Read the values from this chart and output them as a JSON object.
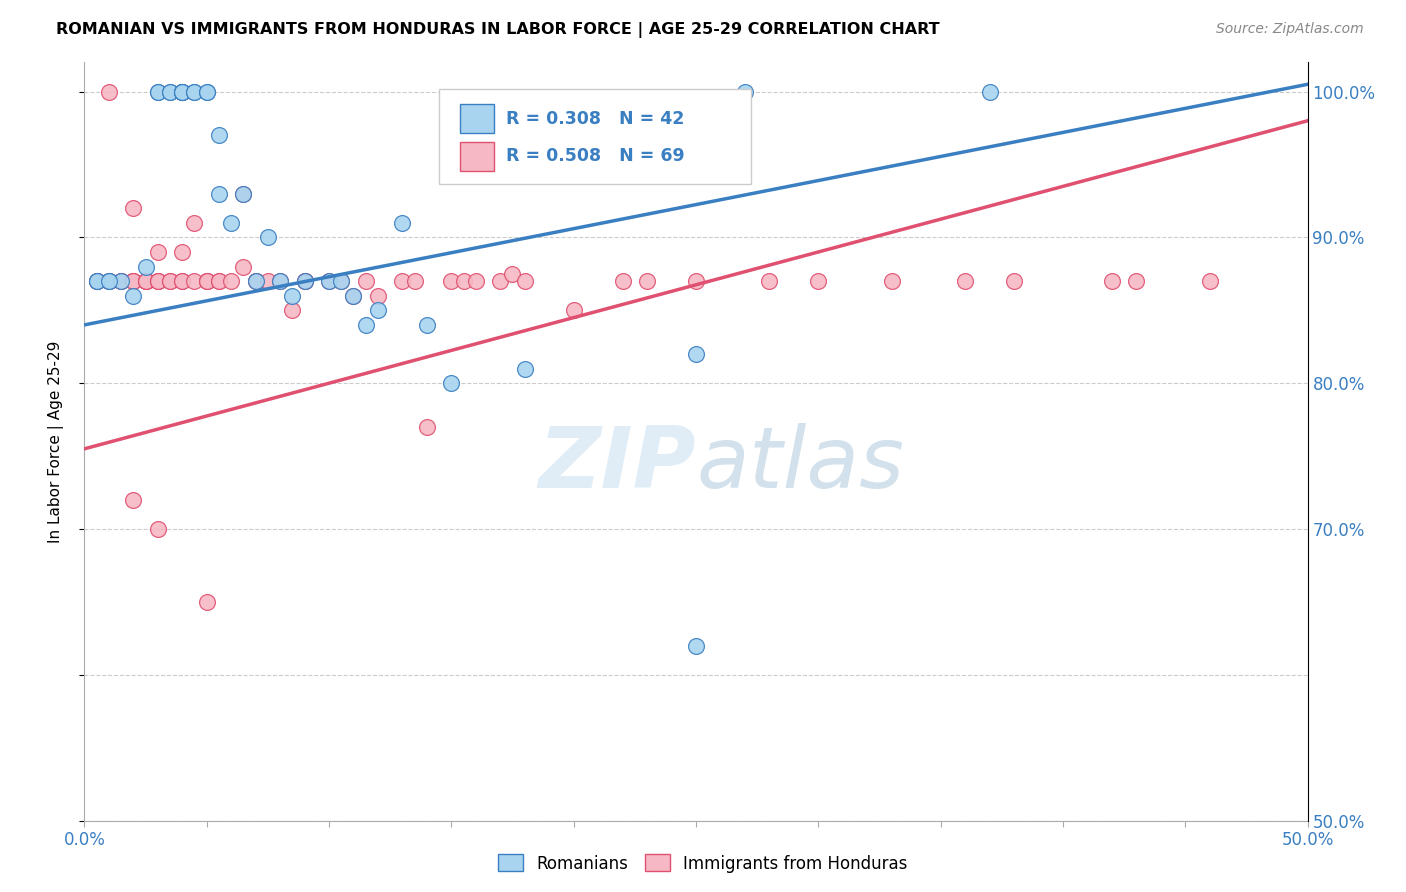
{
  "title": "ROMANIAN VS IMMIGRANTS FROM HONDURAS IN LABOR FORCE | AGE 25-29 CORRELATION CHART",
  "source": "Source: ZipAtlas.com",
  "ylabel_label": "In Labor Force | Age 25-29",
  "x_min": 0.0,
  "x_max": 0.5,
  "y_min": 0.5,
  "y_max": 1.02,
  "x_ticks": [
    0.0,
    0.05,
    0.1,
    0.15,
    0.2,
    0.25,
    0.3,
    0.35,
    0.4,
    0.45,
    0.5
  ],
  "x_tick_labels": [
    "0.0%",
    "",
    "",
    "",
    "",
    "",
    "",
    "",
    "",
    "",
    "50.0%"
  ],
  "y_ticks": [
    0.5,
    0.6,
    0.7,
    0.8,
    0.9,
    1.0
  ],
  "y_tick_labels_right": [
    "50.0%",
    "",
    "70.0%",
    "80.0%",
    "90.0%",
    "100.0%"
  ],
  "blue_color": "#a8d4f0",
  "pink_color": "#f5b8c4",
  "blue_line_color": "#3a7fc1",
  "pink_line_color": "#e05070",
  "legend_label_blue": "Romanians",
  "legend_label_pink": "Immigrants from Honduras",
  "blue_x": [
    0.005,
    0.01,
    0.015,
    0.02,
    0.025,
    0.03,
    0.03,
    0.035,
    0.035,
    0.04,
    0.04,
    0.04,
    0.04,
    0.04,
    0.045,
    0.045,
    0.05,
    0.05,
    0.055,
    0.055,
    0.06,
    0.065,
    0.07,
    0.075,
    0.08,
    0.085,
    0.09,
    0.1,
    0.105,
    0.11,
    0.115,
    0.12,
    0.13,
    0.14,
    0.15,
    0.18,
    0.25,
    0.27,
    0.37,
    0.005,
    0.01,
    0.25
  ],
  "blue_y": [
    0.87,
    0.87,
    0.87,
    0.86,
    0.88,
    1.0,
    1.0,
    1.0,
    1.0,
    1.0,
    1.0,
    1.0,
    1.0,
    1.0,
    1.0,
    1.0,
    1.0,
    1.0,
    0.97,
    0.93,
    0.91,
    0.93,
    0.87,
    0.9,
    0.87,
    0.86,
    0.87,
    0.87,
    0.87,
    0.86,
    0.84,
    0.85,
    0.91,
    0.84,
    0.8,
    0.81,
    0.82,
    1.0,
    1.0,
    0.87,
    0.87,
    0.62
  ],
  "pink_x": [
    0.005,
    0.005,
    0.01,
    0.01,
    0.01,
    0.015,
    0.015,
    0.02,
    0.02,
    0.02,
    0.02,
    0.025,
    0.025,
    0.025,
    0.025,
    0.03,
    0.03,
    0.03,
    0.03,
    0.035,
    0.035,
    0.04,
    0.04,
    0.04,
    0.045,
    0.045,
    0.05,
    0.05,
    0.05,
    0.055,
    0.055,
    0.06,
    0.065,
    0.065,
    0.07,
    0.07,
    0.075,
    0.08,
    0.085,
    0.09,
    0.09,
    0.1,
    0.105,
    0.11,
    0.115,
    0.12,
    0.13,
    0.135,
    0.14,
    0.15,
    0.155,
    0.16,
    0.17,
    0.175,
    0.18,
    0.2,
    0.22,
    0.23,
    0.25,
    0.28,
    0.3,
    0.33,
    0.36,
    0.38,
    0.42,
    0.43,
    0.46,
    0.02,
    0.03,
    0.05
  ],
  "pink_y": [
    0.87,
    0.87,
    1.0,
    0.87,
    0.87,
    0.87,
    0.87,
    0.87,
    0.87,
    0.87,
    0.92,
    0.87,
    0.87,
    0.87,
    0.87,
    0.87,
    0.87,
    0.87,
    0.89,
    0.87,
    0.87,
    0.87,
    0.87,
    0.89,
    0.91,
    0.87,
    0.87,
    0.87,
    0.87,
    0.87,
    0.87,
    0.87,
    0.93,
    0.88,
    0.87,
    0.87,
    0.87,
    0.87,
    0.85,
    0.87,
    0.87,
    0.87,
    0.87,
    0.86,
    0.87,
    0.86,
    0.87,
    0.87,
    0.77,
    0.87,
    0.87,
    0.87,
    0.87,
    0.875,
    0.87,
    0.85,
    0.87,
    0.87,
    0.87,
    0.87,
    0.87,
    0.87,
    0.87,
    0.87,
    0.87,
    0.87,
    0.87,
    0.72,
    0.7,
    0.65
  ],
  "blue_line_x0": 0.0,
  "blue_line_y0": 0.84,
  "blue_line_x1": 0.5,
  "blue_line_y1": 1.005,
  "pink_line_x0": 0.0,
  "pink_line_y0": 0.755,
  "pink_line_x1": 0.5,
  "pink_line_y1": 0.98
}
